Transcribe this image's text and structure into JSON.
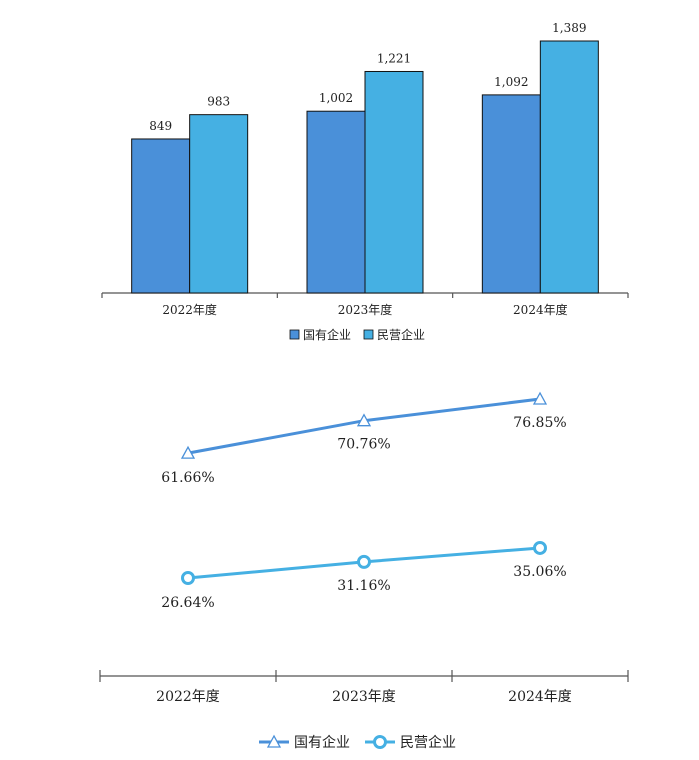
{
  "chart_data": [
    {
      "type": "bar",
      "categories": [
        "2022年度",
        "2023年度",
        "2024年度"
      ],
      "series": [
        {
          "name": "国有企业",
          "values": [
            849,
            1002,
            1092
          ],
          "labels": [
            "849",
            "1,002",
            "1,092"
          ],
          "color": "#4a90d9"
        },
        {
          "name": "民营企业",
          "values": [
            983,
            1221,
            1389
          ],
          "labels": [
            "983",
            "1,221",
            "1,389"
          ],
          "color": "#45b0e3"
        }
      ],
      "ylim": [
        0,
        1400
      ],
      "grid": false,
      "legend": "bottom"
    },
    {
      "type": "line",
      "categories": [
        "2022年度",
        "2023年度",
        "2024年度"
      ],
      "series": [
        {
          "name": "国有企业",
          "values": [
            61.66,
            70.76,
            76.85
          ],
          "labels": [
            "61.66%",
            "70.76%",
            "76.85%"
          ],
          "color": "#4a90d9",
          "marker": "triangle"
        },
        {
          "name": "民营企业",
          "values": [
            26.64,
            31.16,
            35.06
          ],
          "labels": [
            "26.64%",
            "31.16%",
            "35.06%"
          ],
          "color": "#45b0e3",
          "marker": "circle"
        }
      ],
      "grid": false,
      "legend": "bottom"
    }
  ]
}
